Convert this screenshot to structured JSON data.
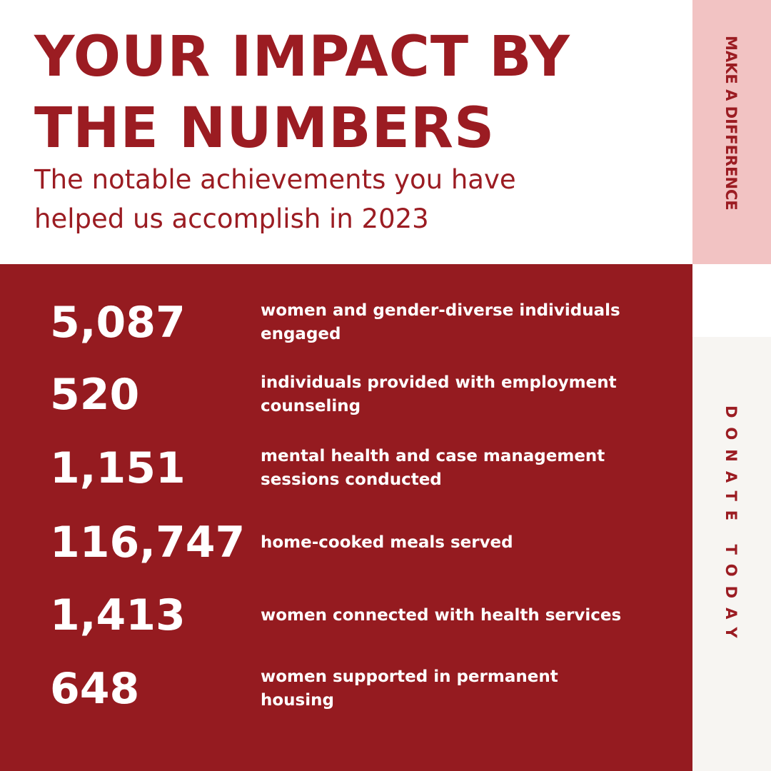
{
  "header": {
    "title": "YOUR IMPACT BY THE NUMBERS",
    "subtitle": "The notable achievements you have helped us accomplish in 2023"
  },
  "side": {
    "top": "MAKE A DIFFERENCE",
    "bottom": "DONATE TODAY"
  },
  "stats": [
    {
      "number": "5,087",
      "text": "women and gender-diverse individuals engaged"
    },
    {
      "number": "520",
      "text": "individuals provided with employment counseling"
    },
    {
      "number": "1,151",
      "text": "mental health and case management sessions conducted"
    },
    {
      "number": "116,747",
      "text": "home-cooked meals served"
    },
    {
      "number": "1,413",
      "text": "women connected with health services"
    },
    {
      "number": "648",
      "text": "women supported in permanent housing"
    }
  ]
}
